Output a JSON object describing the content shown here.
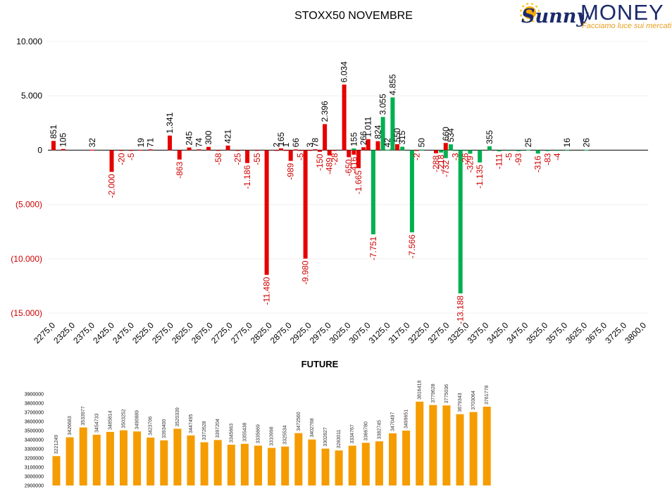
{
  "logo": {
    "brand_script": "Sunny",
    "brand_word": "MONEY",
    "tagline": "Facciamo luce sui mercati"
  },
  "colors": {
    "negative_label": "#d00000",
    "red_bar": "#e60000",
    "green_bar": "#00b050",
    "future_bar": "#f59c00"
  },
  "chart_data": [
    {
      "type": "bar",
      "title": "STOXX50 NOVEMBRE",
      "xlabel": "",
      "ylabel": "",
      "ylim": [
        -15000,
        10000
      ],
      "y_ticks": [
        10000,
        5000,
        0,
        -5000,
        -10000,
        -15000
      ],
      "y_tick_labels": [
        "10.000",
        "5.000",
        "0",
        "(5.000)",
        "(10.000)",
        "(15.000)"
      ],
      "x_ticks": [
        "2275,0",
        "2325,0",
        "2375,0",
        "2425,0",
        "2475,0",
        "2525,0",
        "2575,0",
        "2625,0",
        "2675,0",
        "2725,0",
        "2775,0",
        "2825,0",
        "2875,0",
        "2925,0",
        "2975,0",
        "3025,0",
        "3075,0",
        "3125,0",
        "3175,0",
        "3225,0",
        "3275,0",
        "3325,0",
        "3375,0",
        "3425,0",
        "3475,0",
        "3525,0",
        "3575,0",
        "3625,0",
        "3675,0",
        "3725,0",
        "3800,0"
      ],
      "x_range": [
        2275,
        3800
      ],
      "series": [
        {
          "color": "red",
          "points": [
            {
              "x": 2275,
              "value": 851,
              "label": "851"
            },
            {
              "x": 2300,
              "value": 105,
              "label": "105"
            },
            {
              "x": 2375,
              "value": 32,
              "label": "32"
            },
            {
              "x": 2425,
              "value": -2000,
              "label": "-2.000"
            },
            {
              "x": 2450,
              "value": -20,
              "label": "-20"
            },
            {
              "x": 2475,
              "value": -5,
              "label": "-5"
            },
            {
              "x": 2500,
              "value": 19,
              "label": "19"
            },
            {
              "x": 2525,
              "value": 71,
              "label": "71"
            },
            {
              "x": 2575,
              "value": 1341,
              "label": "1.341"
            },
            {
              "x": 2600,
              "value": -863,
              "label": "-863"
            },
            {
              "x": 2625,
              "value": 245,
              "label": "245"
            },
            {
              "x": 2650,
              "value": 74,
              "label": "74"
            },
            {
              "x": 2675,
              "value": 300,
              "label": "300"
            },
            {
              "x": 2700,
              "value": -58,
              "label": "-58"
            },
            {
              "x": 2725,
              "value": 421,
              "label": "421"
            },
            {
              "x": 2750,
              "value": -25,
              "label": "-25"
            },
            {
              "x": 2775,
              "value": -1186,
              "label": "-1.186"
            },
            {
              "x": 2800,
              "value": -55,
              "label": "-55"
            },
            {
              "x": 2825,
              "value": -11480,
              "label": "-11.480"
            },
            {
              "x": 2850,
              "value": 2,
              "label": "2"
            },
            {
              "x": 2862,
              "value": 165,
              "label": "165"
            },
            {
              "x": 2875,
              "value": 1,
              "label": "1"
            },
            {
              "x": 2887,
              "value": -989,
              "label": "-989"
            },
            {
              "x": 2900,
              "value": 66,
              "label": "66"
            },
            {
              "x": 2912,
              "value": -5,
              "label": "-5"
            },
            {
              "x": 2925,
              "value": -9980,
              "label": "-9.980"
            },
            {
              "x": 2937,
              "value": 3,
              "label": "3"
            },
            {
              "x": 2950,
              "value": 78,
              "label": "78"
            },
            {
              "x": 2962,
              "value": -150,
              "label": "-150"
            },
            {
              "x": 2975,
              "value": 2396,
              "label": "2.396"
            },
            {
              "x": 2987,
              "value": -489,
              "label": "-489"
            },
            {
              "x": 3000,
              "value": -28,
              "label": "-28"
            },
            {
              "x": 3025,
              "value": 6034,
              "label": "6.034"
            },
            {
              "x": 3037,
              "value": -650,
              "label": "-650"
            },
            {
              "x": 3050,
              "value": -416,
              "label": "-416"
            },
            {
              "x": 3062,
              "value": -1665,
              "label": "-1.665"
            },
            {
              "x": 3075,
              "value": 266,
              "label": "266"
            },
            {
              "x": 3087,
              "value": 1011,
              "label": "1.011"
            },
            {
              "x": 3112,
              "value": 824,
              "label": "824"
            },
            {
              "x": 3162,
              "value": 550,
              "label": "550"
            },
            {
              "x": 3212,
              "value": -2,
              "label": "-2"
            },
            {
              "x": 3262,
              "value": -288,
              "label": "-288"
            },
            {
              "x": 3287,
              "value": 660,
              "label": "660"
            }
          ]
        },
        {
          "color": "green",
          "points": [
            {
              "x": 3050,
              "value": 155,
              "label": "155"
            },
            {
              "x": 3100,
              "value": -7751,
              "label": "-7.751"
            },
            {
              "x": 3125,
              "value": 3055,
              "label": "3.055"
            },
            {
              "x": 3137,
              "value": 42,
              "label": "42"
            },
            {
              "x": 3150,
              "value": 4855,
              "label": "4.855"
            },
            {
              "x": 3175,
              "value": 315,
              "label": "315"
            },
            {
              "x": 3200,
              "value": -7566,
              "label": "-7.566"
            },
            {
              "x": 3225,
              "value": 50,
              "label": "50"
            },
            {
              "x": 3275,
              "value": -218,
              "label": "-218"
            },
            {
              "x": 3287,
              "value": -732,
              "label": "-732"
            },
            {
              "x": 3300,
              "value": 534,
              "label": "534"
            },
            {
              "x": 3312,
              "value": -3,
              "label": "-3"
            },
            {
              "x": 3325,
              "value": -13188,
              "label": "-13.188"
            },
            {
              "x": 3337,
              "value": -26,
              "label": "-26"
            },
            {
              "x": 3350,
              "value": -329,
              "label": "-329"
            },
            {
              "x": 3375,
              "value": -1135,
              "label": "-1.135"
            },
            {
              "x": 3400,
              "value": 355,
              "label": "355"
            },
            {
              "x": 3425,
              "value": -111,
              "label": "-111"
            },
            {
              "x": 3450,
              "value": -5,
              "label": "-5"
            },
            {
              "x": 3475,
              "value": -93,
              "label": "-93"
            },
            {
              "x": 3500,
              "value": 25,
              "label": "25"
            },
            {
              "x": 3525,
              "value": -316,
              "label": "-316"
            },
            {
              "x": 3550,
              "value": -83,
              "label": "-83"
            },
            {
              "x": 3575,
              "value": -4,
              "label": "-4"
            },
            {
              "x": 3600,
              "value": 16,
              "label": "16"
            },
            {
              "x": 3650,
              "value": 26,
              "label": "26"
            }
          ]
        }
      ],
      "grid": true,
      "legend": "none"
    },
    {
      "type": "bar",
      "title": "FUTURE",
      "xlabel": "",
      "ylabel": "",
      "ylim": [
        2900000,
        3900000
      ],
      "y_ticks": [
        3900000,
        3800000,
        3700000,
        3600000,
        3500000,
        3400000,
        3300000,
        3200000,
        3100000,
        3000000,
        2900000
      ],
      "y_tick_labels": [
        "3900000",
        "3800000",
        "3700000",
        "3600000",
        "3500000",
        "3400000",
        "3300000",
        "3200000",
        "3100000",
        "3000000",
        "2900000"
      ],
      "values": [
        3221249,
        3426683,
        3533977,
        3454733,
        3485814,
        3503252,
        3490889,
        3423706,
        3393400,
        3520339,
        3447495,
        3372628,
        3397204,
        3345663,
        3355438,
        3335669,
        3310998,
        3325534,
        3472560,
        3402768,
        3302827,
        3283011,
        3334767,
        3366780,
        3382745,
        3470497,
        3499651,
        3816418,
        3779628,
        3775036,
        3679343,
        3703064,
        3761778
      ],
      "grid": false,
      "legend": "none"
    }
  ]
}
